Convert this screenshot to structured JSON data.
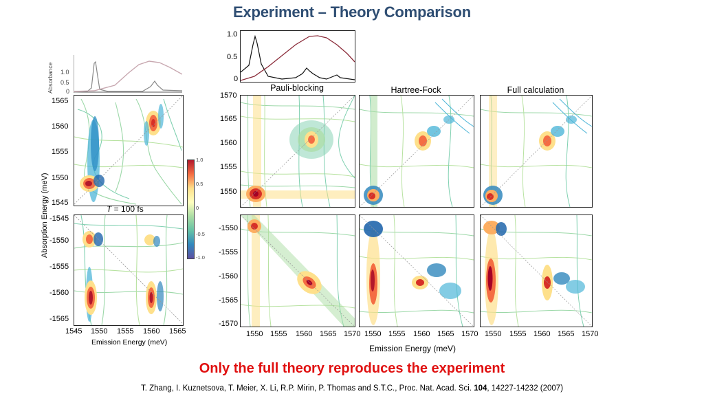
{
  "slide": {
    "title": "Experiment – Theory Comparison",
    "conclusion": "Only the full theory reproduces the experiment",
    "citation": {
      "before": "T. Zhang, I. Kuznetsova, T. Meier, X. Li, R.P. Mirin, P. Thomas and S.T.C., Proc. Nat. Acad. Sci. ",
      "volume": "104",
      "after": ", 14227-14232 (2007)"
    }
  },
  "experiment": {
    "absorbance_label": "Absorbance",
    "absorbance_ticks": [
      "1.0",
      "0.5",
      "0"
    ],
    "y_axis_label": "Absorption Energy (meV)",
    "x_axis_label": "Emission Energy (meV)",
    "upper_y_ticks": [
      "1565",
      "1560",
      "1555",
      "1550",
      "1545"
    ],
    "lower_y_ticks": [
      "-1545",
      "-1550",
      "-1555",
      "-1560",
      "-1565"
    ],
    "x_ticks": [
      "1545",
      "1550",
      "1555",
      "1560",
      "1565"
    ],
    "time_label_var": "T",
    "time_label_rest": " = 100 fs",
    "colorbar_ticks": [
      "1.0",
      "0.5",
      "0",
      "-0.5",
      "-1.0"
    ],
    "colorbar_colors": [
      "#b2182b",
      "#f46d43",
      "#fee08b",
      "#ffffbf",
      "#abdda4",
      "#66c2a5",
      "#3288bd",
      "#5e4fa2"
    ]
  },
  "theory": {
    "top_ticks": [
      "1.0",
      "0.5",
      "0"
    ],
    "columns": [
      "Pauli-blocking",
      "Hartree-Fock",
      "Full calculation"
    ],
    "upper_y_ticks": [
      "1570",
      "1565",
      "1560",
      "1555",
      "1550"
    ],
    "lower_y_ticks": [
      "-1550",
      "-1555",
      "-1560",
      "-1565",
      "-1570"
    ],
    "x_ticks": [
      "1550",
      "1555",
      "1560",
      "1565",
      "1570"
    ],
    "x_axis_label": "Emission Energy (meV)"
  }
}
